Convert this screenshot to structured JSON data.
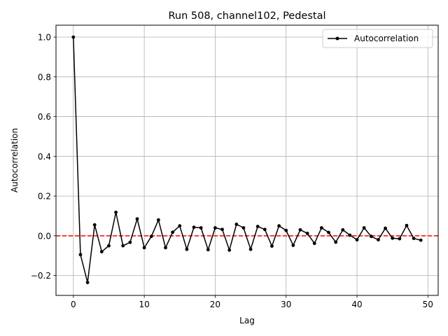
{
  "chart_data": {
    "type": "line",
    "title": "Run 508, channel102, Pedestal",
    "xlabel": "Lag",
    "ylabel": "Autocorrelation",
    "xlim": [
      -2.45,
      51.45
    ],
    "ylim": [
      -0.3,
      1.06
    ],
    "xticks": [
      0,
      10,
      20,
      30,
      40,
      50
    ],
    "yticks": [
      -0.2,
      0.0,
      0.2,
      0.4,
      0.6,
      0.8,
      1.0
    ],
    "xtick_labels": [
      "0",
      "10",
      "20",
      "30",
      "40",
      "50"
    ],
    "ytick_labels": [
      "−0.2",
      "0.0",
      "0.2",
      "0.4",
      "0.6",
      "0.8",
      "1.0"
    ],
    "grid": true,
    "legend_position": "top-right",
    "series": [
      {
        "name": "Autocorrelation",
        "color": "#000000",
        "marker": "dot",
        "x": [
          0,
          1,
          2,
          3,
          4,
          5,
          6,
          7,
          8,
          9,
          10,
          11,
          12,
          13,
          14,
          15,
          16,
          17,
          18,
          19,
          20,
          21,
          22,
          23,
          24,
          25,
          26,
          27,
          28,
          29,
          30,
          31,
          32,
          33,
          34,
          35,
          36,
          37,
          38,
          39,
          40,
          41,
          42,
          43,
          44,
          45,
          46,
          47,
          48,
          49
        ],
        "y": [
          1.0,
          -0.095,
          -0.235,
          0.055,
          -0.08,
          -0.05,
          0.118,
          -0.05,
          -0.033,
          0.085,
          -0.06,
          -0.003,
          0.08,
          -0.06,
          0.018,
          0.05,
          -0.068,
          0.043,
          0.04,
          -0.07,
          0.04,
          0.032,
          -0.072,
          0.058,
          0.04,
          -0.068,
          0.047,
          0.032,
          -0.052,
          0.05,
          0.027,
          -0.048,
          0.03,
          0.012,
          -0.038,
          0.04,
          0.017,
          -0.032,
          0.03,
          0.003,
          -0.02,
          0.04,
          -0.003,
          -0.02,
          0.038,
          -0.012,
          -0.015,
          0.052,
          -0.013,
          -0.022
        ]
      }
    ],
    "reference_line": {
      "y": 0.0,
      "color": "#ff0000",
      "style": "dashed"
    }
  }
}
